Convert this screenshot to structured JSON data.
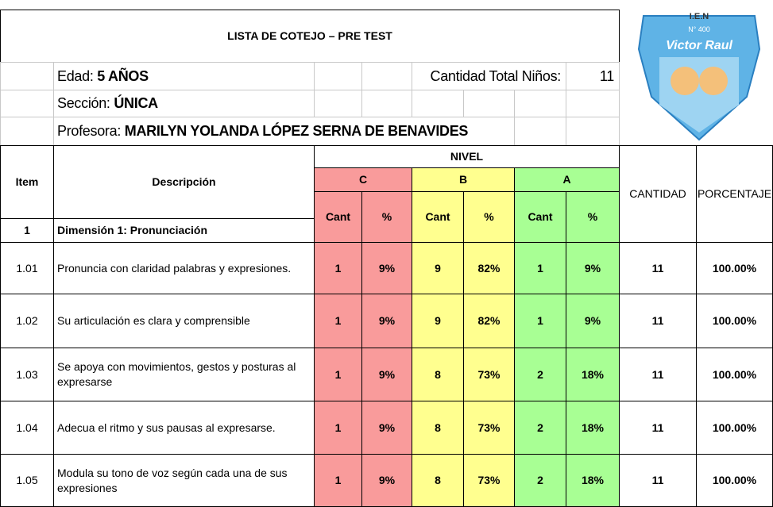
{
  "header": {
    "title": "LISTA DE COTEJO – PRE TEST",
    "logo": [
      "I.E.N",
      "N° 400",
      "Victor Raul"
    ]
  },
  "info": {
    "edad_label": "Edad: ",
    "edad_value": "5 AÑOS",
    "total_label": "Cantidad Total Niños:",
    "total_value": "11",
    "seccion_label": "Sección: ",
    "seccion_value": "ÚNICA",
    "profesora_label": "Profesora: ",
    "profesora_value": "MARILYN YOLANDA LÓPEZ SERNA DE BENAVIDES"
  },
  "table": {
    "headers": {
      "item": "Item",
      "descripcion": "Descripción",
      "nivel": "NIVEL",
      "levels": [
        "C",
        "B",
        "A"
      ],
      "sub": [
        "Cant",
        "%",
        "Cant",
        "%",
        "Cant",
        "%"
      ],
      "cantidad": "CANTIDAD",
      "porcentaje": "PORCENTAJE"
    },
    "dimension": {
      "item": "1",
      "label": "Dimensión 1: Pronunciación"
    },
    "rows": [
      [
        "1.01",
        "Pronuncia con claridad palabras y expresiones.",
        "1",
        "9%",
        "9",
        "82%",
        "1",
        "9%",
        "11",
        "100.00%"
      ],
      [
        "1.02",
        "Su articulación es clara y comprensible",
        "1",
        "9%",
        "9",
        "82%",
        "1",
        "9%",
        "11",
        "100.00%"
      ],
      [
        "1.03",
        "Se apoya con movimientos, gestos y posturas al expresarse",
        "1",
        "9%",
        "8",
        "73%",
        "2",
        "18%",
        "11",
        "100.00%"
      ],
      [
        "1.04",
        "Adecua el ritmo y sus pausas al expresarse.",
        "1",
        "9%",
        "8",
        "73%",
        "2",
        "18%",
        "11",
        "100.00%"
      ],
      [
        "1.05",
        "Modula su tono de voz según cada una de sus expresiones",
        "1",
        "9%",
        "8",
        "73%",
        "2",
        "18%",
        "11",
        "100.00%"
      ]
    ]
  }
}
